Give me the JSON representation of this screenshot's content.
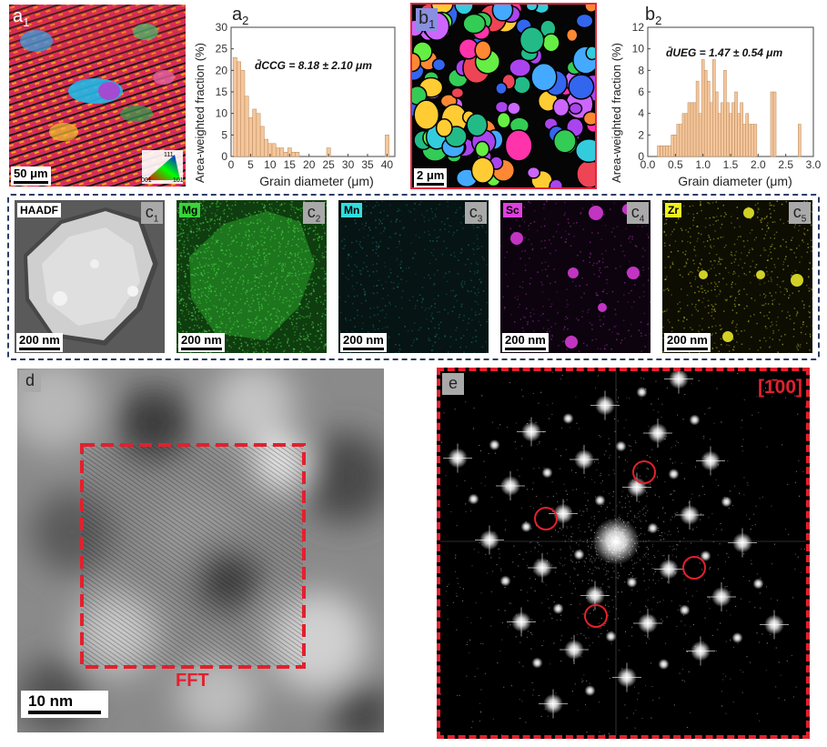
{
  "panels": {
    "a1": {
      "label": "a",
      "sub": "1",
      "scalebar": "50 μm",
      "ipf_key": [
        "111",
        "001",
        "101"
      ]
    },
    "a2": {
      "label": "a",
      "sub": "2",
      "formula": "d̄CCG = 8.18 ± 2.10 μm"
    },
    "b1": {
      "label": "b",
      "sub": "1",
      "scalebar": "2 μm"
    },
    "b2": {
      "label": "b",
      "sub": "2",
      "formula": "d̄UEG = 1.47 ± 0.54 μm"
    },
    "c1": {
      "label": "c",
      "sub": "1",
      "element": "HAADF",
      "scalebar": "200 nm"
    },
    "c2": {
      "label": "c",
      "sub": "2",
      "element": "Mg",
      "scalebar": "200 nm"
    },
    "c3": {
      "label": "c",
      "sub": "3",
      "element": "Mn",
      "scalebar": "200 nm"
    },
    "c4": {
      "label": "c",
      "sub": "4",
      "element": "Sc",
      "scalebar": "200 nm"
    },
    "c5": {
      "label": "c",
      "sub": "5",
      "element": "Zr",
      "scalebar": "200 nm"
    },
    "d": {
      "label": "d",
      "fft_label": "FFT",
      "scalebar": "10 nm"
    },
    "e": {
      "label": "e",
      "zone_axis": "[1̄00]"
    }
  },
  "chart_data": [
    {
      "type": "bar",
      "xlabel": "Grain diameter (μm)",
      "ylabel": "Area-weighted fraction (%)",
      "xlim": [
        0,
        42
      ],
      "ylim": [
        0,
        30
      ],
      "xticks": [
        0,
        5,
        10,
        15,
        20,
        25,
        30,
        35,
        40
      ],
      "yticks": [
        0,
        5,
        10,
        15,
        20,
        25,
        30
      ],
      "bin_width": 1,
      "x": [
        1,
        2,
        3,
        4,
        5,
        6,
        7,
        8,
        9,
        10,
        11,
        12,
        13,
        14,
        15,
        16,
        17,
        25,
        40
      ],
      "values": [
        23,
        22,
        20,
        14,
        9,
        11,
        10,
        7,
        4,
        3,
        3,
        2,
        2,
        1,
        2,
        1,
        1,
        2,
        5
      ],
      "color": "#f5c69b"
    },
    {
      "type": "bar",
      "xlabel": "Grain diameter (μm)",
      "ylabel": "Area-weighted fraction (%)",
      "xlim": [
        0,
        3.0
      ],
      "ylim": [
        0,
        12
      ],
      "xticks": [
        0.0,
        0.5,
        1.0,
        1.5,
        2.0,
        2.5,
        3.0
      ],
      "yticks": [
        0,
        2,
        4,
        6,
        8,
        10,
        12
      ],
      "bin_width": 0.05,
      "x": [
        0.2,
        0.25,
        0.3,
        0.35,
        0.4,
        0.45,
        0.5,
        0.55,
        0.6,
        0.65,
        0.7,
        0.75,
        0.8,
        0.85,
        0.9,
        0.95,
        1.0,
        1.05,
        1.1,
        1.15,
        1.2,
        1.25,
        1.3,
        1.35,
        1.4,
        1.45,
        1.5,
        1.55,
        1.6,
        1.65,
        1.7,
        1.75,
        1.8,
        1.85,
        1.9,
        1.95,
        2.25,
        2.3,
        2.75
      ],
      "values": [
        1,
        1,
        1,
        1,
        1,
        2,
        2,
        3,
        3,
        4,
        4,
        5,
        5,
        5,
        7,
        4,
        9,
        8,
        7,
        5,
        9,
        6,
        4,
        5,
        8,
        5,
        4,
        5,
        6,
        4,
        5,
        3,
        4,
        3,
        3,
        3,
        6,
        6,
        3
      ],
      "color": "#f5c69b"
    }
  ]
}
